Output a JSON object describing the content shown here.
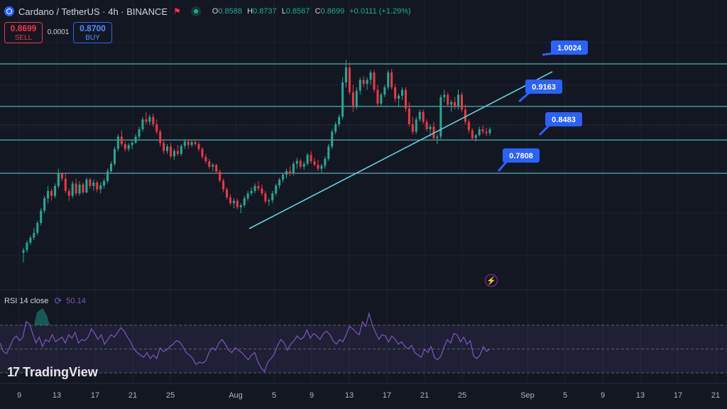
{
  "header": {
    "title": "Cardano / TetherUS · 4h · BINANCE",
    "ohlc": [
      {
        "k": "O",
        "v": "0.8588"
      },
      {
        "k": "H",
        "v": "0.8737"
      },
      {
        "k": "L",
        "v": "0.8567"
      },
      {
        "k": "C",
        "v": "0.8699"
      }
    ],
    "change": "+0.0111 (+1.29%)"
  },
  "trade": {
    "sell_price": "0.8699",
    "sell_label": "SELL",
    "spread": "0.0001",
    "buy_price": "0.8700",
    "buy_label": "BUY"
  },
  "rsi": {
    "label": "RSI 14 close",
    "value": "50.14"
  },
  "branding": {
    "logo_text": "TradingView"
  },
  "colors": {
    "background": "#131722",
    "up": "#22ab94",
    "down": "#f23645",
    "line": "#5ed6e0",
    "rsi": "#7e57c2",
    "tag": "#2962ff"
  },
  "chart_data": {
    "type": "candlestick",
    "price_levels": [
      1.0024,
      0.9163,
      0.8483,
      0.7808
    ],
    "price_tags": [
      "1.0024",
      "0.9163",
      "0.8483",
      "0.7808"
    ],
    "x_ticks": [
      "9",
      "13",
      "17",
      "21",
      "25",
      "Aug",
      "5",
      "9",
      "13",
      "17",
      "21",
      "25",
      "Sep",
      "5",
      "9",
      "13",
      "17",
      "21"
    ],
    "rsi_series": [
      55,
      48,
      46,
      52,
      58,
      61,
      57,
      60,
      73,
      71,
      63,
      55,
      60,
      52,
      58,
      56,
      62,
      56,
      58,
      60,
      55,
      62,
      59,
      64,
      55,
      58,
      57,
      60,
      67,
      63,
      58,
      62,
      54,
      58,
      62,
      60,
      64,
      68,
      65,
      60,
      56,
      50,
      47,
      45,
      43,
      47,
      42,
      45,
      42,
      51,
      48,
      49,
      52,
      54,
      57,
      56,
      52,
      47,
      45,
      42,
      37,
      39,
      38,
      40,
      47,
      51,
      49,
      55,
      58,
      54,
      49,
      47,
      51,
      49,
      47,
      44,
      41,
      45,
      47,
      39,
      34,
      31,
      39,
      42,
      46,
      53,
      58,
      55,
      49,
      54,
      57,
      61,
      58,
      60,
      66,
      59,
      63,
      61,
      58,
      63,
      65,
      62,
      57,
      54,
      58,
      56,
      62,
      69,
      67,
      64,
      62,
      73,
      69,
      80,
      70,
      64,
      58,
      62,
      61,
      56,
      61,
      58,
      54,
      56,
      52,
      50,
      53,
      47,
      45,
      43,
      50,
      47,
      52,
      43,
      41,
      44,
      52,
      58,
      55,
      63,
      62,
      56,
      60,
      54,
      57,
      44,
      42,
      45,
      52,
      48,
      50
    ],
    "rsi_levels": [
      70,
      50,
      30
    ],
    "ohlc": [
      [
        0.62,
        0.63,
        0.6,
        0.625
      ],
      [
        0.625,
        0.645,
        0.62,
        0.64
      ],
      [
        0.64,
        0.655,
        0.635,
        0.65
      ],
      [
        0.65,
        0.67,
        0.645,
        0.66
      ],
      [
        0.66,
        0.685,
        0.655,
        0.68
      ],
      [
        0.68,
        0.71,
        0.675,
        0.705
      ],
      [
        0.705,
        0.735,
        0.7,
        0.73
      ],
      [
        0.73,
        0.755,
        0.72,
        0.745
      ],
      [
        0.745,
        0.75,
        0.725,
        0.735
      ],
      [
        0.735,
        0.76,
        0.73,
        0.755
      ],
      [
        0.755,
        0.79,
        0.75,
        0.78
      ],
      [
        0.78,
        0.782,
        0.765,
        0.77
      ],
      [
        0.77,
        0.78,
        0.74,
        0.745
      ],
      [
        0.745,
        0.75,
        0.725,
        0.735
      ],
      [
        0.735,
        0.765,
        0.73,
        0.76
      ],
      [
        0.76,
        0.77,
        0.735,
        0.74
      ],
      [
        0.74,
        0.765,
        0.735,
        0.758
      ],
      [
        0.758,
        0.762,
        0.738,
        0.742
      ],
      [
        0.742,
        0.772,
        0.74,
        0.768
      ],
      [
        0.768,
        0.772,
        0.75,
        0.755
      ],
      [
        0.755,
        0.768,
        0.745,
        0.762
      ],
      [
        0.762,
        0.766,
        0.742,
        0.748
      ],
      [
        0.748,
        0.762,
        0.74,
        0.756
      ],
      [
        0.756,
        0.77,
        0.75,
        0.765
      ],
      [
        0.765,
        0.79,
        0.76,
        0.785
      ],
      [
        0.785,
        0.805,
        0.78,
        0.8
      ],
      [
        0.8,
        0.835,
        0.795,
        0.83
      ],
      [
        0.83,
        0.86,
        0.825,
        0.855
      ],
      [
        0.855,
        0.868,
        0.835,
        0.84
      ],
      [
        0.84,
        0.845,
        0.825,
        0.83
      ],
      [
        0.83,
        0.842,
        0.825,
        0.838
      ],
      [
        0.838,
        0.848,
        0.83,
        0.843
      ],
      [
        0.843,
        0.86,
        0.84,
        0.855
      ],
      [
        0.855,
        0.875,
        0.85,
        0.87
      ],
      [
        0.87,
        0.895,
        0.865,
        0.89
      ],
      [
        0.89,
        0.905,
        0.88,
        0.885
      ],
      [
        0.885,
        0.9,
        0.878,
        0.895
      ],
      [
        0.895,
        0.902,
        0.875,
        0.88
      ],
      [
        0.88,
        0.89,
        0.86,
        0.865
      ],
      [
        0.865,
        0.87,
        0.835,
        0.842
      ],
      [
        0.842,
        0.848,
        0.82,
        0.826
      ],
      [
        0.826,
        0.84,
        0.82,
        0.835
      ],
      [
        0.835,
        0.842,
        0.81,
        0.815
      ],
      [
        0.815,
        0.83,
        0.808,
        0.826
      ],
      [
        0.826,
        0.838,
        0.815,
        0.82
      ],
      [
        0.82,
        0.84,
        0.816,
        0.836
      ],
      [
        0.836,
        0.85,
        0.83,
        0.845
      ],
      [
        0.845,
        0.85,
        0.83,
        0.838
      ],
      [
        0.838,
        0.848,
        0.834,
        0.844
      ],
      [
        0.844,
        0.85,
        0.836,
        0.84
      ],
      [
        0.84,
        0.845,
        0.825,
        0.83
      ],
      [
        0.83,
        0.834,
        0.81,
        0.814
      ],
      [
        0.814,
        0.82,
        0.8,
        0.805
      ],
      [
        0.805,
        0.81,
        0.79,
        0.794
      ],
      [
        0.794,
        0.802,
        0.785,
        0.798
      ],
      [
        0.798,
        0.8,
        0.78,
        0.784
      ],
      [
        0.784,
        0.788,
        0.762,
        0.766
      ],
      [
        0.766,
        0.77,
        0.742,
        0.748
      ],
      [
        0.748,
        0.752,
        0.728,
        0.732
      ],
      [
        0.732,
        0.738,
        0.715,
        0.72
      ],
      [
        0.72,
        0.73,
        0.71,
        0.725
      ],
      [
        0.725,
        0.73,
        0.708,
        0.712
      ],
      [
        0.712,
        0.72,
        0.7,
        0.716
      ],
      [
        0.716,
        0.735,
        0.712,
        0.73
      ],
      [
        0.73,
        0.745,
        0.725,
        0.74
      ],
      [
        0.74,
        0.752,
        0.735,
        0.745
      ],
      [
        0.745,
        0.76,
        0.74,
        0.755
      ],
      [
        0.755,
        0.765,
        0.745,
        0.75
      ],
      [
        0.75,
        0.758,
        0.735,
        0.74
      ],
      [
        0.74,
        0.745,
        0.72,
        0.724
      ],
      [
        0.724,
        0.73,
        0.715,
        0.726
      ],
      [
        0.726,
        0.745,
        0.72,
        0.74
      ],
      [
        0.74,
        0.76,
        0.735,
        0.756
      ],
      [
        0.756,
        0.772,
        0.75,
        0.768
      ],
      [
        0.768,
        0.782,
        0.762,
        0.778
      ],
      [
        0.778,
        0.79,
        0.77,
        0.785
      ],
      [
        0.785,
        0.795,
        0.775,
        0.78
      ],
      [
        0.78,
        0.805,
        0.776,
        0.8
      ],
      [
        0.8,
        0.812,
        0.79,
        0.806
      ],
      [
        0.806,
        0.81,
        0.79,
        0.794
      ],
      [
        0.794,
        0.805,
        0.788,
        0.8
      ],
      [
        0.8,
        0.822,
        0.796,
        0.818
      ],
      [
        0.818,
        0.825,
        0.8,
        0.805
      ],
      [
        0.805,
        0.812,
        0.795,
        0.798
      ],
      [
        0.798,
        0.808,
        0.785,
        0.79
      ],
      [
        0.79,
        0.8,
        0.78,
        0.796
      ],
      [
        0.796,
        0.815,
        0.79,
        0.81
      ],
      [
        0.81,
        0.84,
        0.806,
        0.835
      ],
      [
        0.835,
        0.87,
        0.83,
        0.865
      ],
      [
        0.865,
        0.885,
        0.86,
        0.88
      ],
      [
        0.88,
        0.9,
        0.875,
        0.895
      ],
      [
        0.895,
        0.975,
        0.89,
        0.965
      ],
      [
        0.965,
        1.01,
        0.955,
        0.995
      ],
      [
        0.995,
        1.005,
        0.94,
        0.945
      ],
      [
        0.945,
        0.96,
        0.905,
        0.915
      ],
      [
        0.915,
        0.955,
        0.91,
        0.948
      ],
      [
        0.948,
        0.975,
        0.94,
        0.97
      ],
      [
        0.97,
        0.978,
        0.955,
        0.962
      ],
      [
        0.962,
        0.975,
        0.95,
        0.97
      ],
      [
        0.97,
        0.99,
        0.96,
        0.985
      ],
      [
        0.985,
        0.99,
        0.945,
        0.95
      ],
      [
        0.95,
        0.96,
        0.915,
        0.922
      ],
      [
        0.922,
        0.945,
        0.918,
        0.94
      ],
      [
        0.94,
        0.96,
        0.935,
        0.955
      ],
      [
        0.955,
        0.99,
        0.95,
        0.985
      ],
      [
        0.985,
        0.992,
        0.95,
        0.955
      ],
      [
        0.955,
        0.962,
        0.925,
        0.932
      ],
      [
        0.932,
        0.942,
        0.915,
        0.938
      ],
      [
        0.938,
        0.955,
        0.93,
        0.95
      ],
      [
        0.95,
        0.955,
        0.905,
        0.912
      ],
      [
        0.912,
        0.925,
        0.875,
        0.88
      ],
      [
        0.88,
        0.895,
        0.86,
        0.865
      ],
      [
        0.865,
        0.895,
        0.86,
        0.89
      ],
      [
        0.89,
        0.91,
        0.885,
        0.905
      ],
      [
        0.905,
        0.91,
        0.88,
        0.885
      ],
      [
        0.885,
        0.89,
        0.865,
        0.87
      ],
      [
        0.87,
        0.88,
        0.855,
        0.875
      ],
      [
        0.875,
        0.885,
        0.848,
        0.852
      ],
      [
        0.852,
        0.86,
        0.84,
        0.855
      ],
      [
        0.855,
        0.94,
        0.85,
        0.935
      ],
      [
        0.935,
        0.95,
        0.925,
        0.94
      ],
      [
        0.94,
        0.945,
        0.915,
        0.92
      ],
      [
        0.92,
        0.93,
        0.905,
        0.925
      ],
      [
        0.925,
        0.935,
        0.91,
        0.915
      ],
      [
        0.915,
        0.95,
        0.91,
        0.94
      ],
      [
        0.94,
        0.945,
        0.905,
        0.91
      ],
      [
        0.91,
        0.92,
        0.88,
        0.885
      ],
      [
        0.885,
        0.89,
        0.862,
        0.868
      ],
      [
        0.868,
        0.872,
        0.848,
        0.852
      ],
      [
        0.852,
        0.86,
        0.845,
        0.858
      ],
      [
        0.858,
        0.875,
        0.855,
        0.87
      ],
      [
        0.87,
        0.878,
        0.86,
        0.865
      ],
      [
        0.865,
        0.873,
        0.856,
        0.862
      ],
      [
        0.862,
        0.874,
        0.857,
        0.87
      ]
    ]
  }
}
